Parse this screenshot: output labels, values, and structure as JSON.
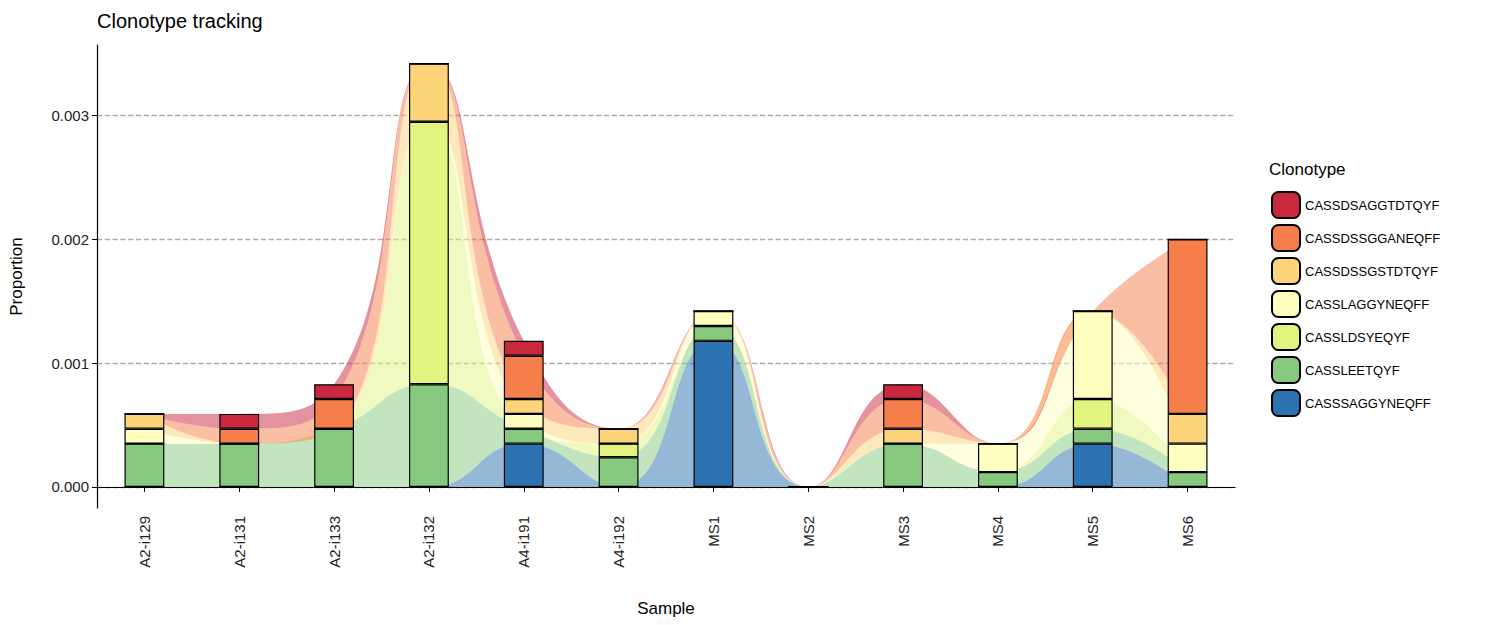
{
  "chart_data": {
    "type": "bar",
    "title": "Clonotype tracking",
    "x_label": "Sample",
    "y_label": "Proportion",
    "legend_title": "Clonotype",
    "legend": "right",
    "stacked": true,
    "grid": true,
    "categories": [
      "A2-i129",
      "A2-i131",
      "A2-i133",
      "A2-i132",
      "A4-i191",
      "A4-i192",
      "MS1",
      "MS2",
      "MS3",
      "MS4",
      "MS5",
      "MS6"
    ],
    "ylim": [
      -0.00017,
      0.00357
    ],
    "yticks": [
      {
        "value": 0,
        "label": "0.000"
      },
      {
        "value": 0.001,
        "label": "0.001"
      },
      {
        "value": 0.002,
        "label": "0.002"
      },
      {
        "value": 0.003,
        "label": "0.003"
      }
    ],
    "series": [
      {
        "name": "CASSSAGGYNEQFF",
        "color": "#2c72b0",
        "values": [
          0,
          0,
          0,
          0,
          0.00035,
          0,
          0.00118,
          0,
          0,
          0,
          0.00035,
          0
        ]
      },
      {
        "name": "CASSLEETQYF",
        "color": "#86c97e",
        "values": [
          0.00035,
          0.00035,
          0.00047,
          0.00083,
          0.00012,
          0.00024,
          0.00012,
          0,
          0.00035,
          0.00012,
          0.00012,
          0.00012
        ]
      },
      {
        "name": "CASSLDSYEQYF",
        "color": "#e2f37f",
        "values": [
          0,
          0,
          0,
          0.00212,
          0,
          0.00011,
          0,
          0,
          0,
          0,
          0.00024,
          0
        ]
      },
      {
        "name": "CASSLAGGYNEQFF",
        "color": "#ffffbf",
        "values": [
          0.00012,
          0,
          0,
          0,
          0.00012,
          0,
          0.00012,
          0,
          0,
          0.00023,
          0.00071,
          0.00023
        ]
      },
      {
        "name": "CASSDSSGSTDTQYF",
        "color": "#fdd47a",
        "values": [
          0.00012,
          0,
          0,
          0.00047,
          0.00012,
          0.00012,
          0,
          0,
          0.00012,
          0,
          0,
          0.00024
        ]
      },
      {
        "name": "CASSDSSGGANEQFF",
        "color": "#f67e4b",
        "values": [
          0,
          0.00012,
          0.00024,
          0,
          0.00035,
          0,
          0,
          0,
          0.00024,
          0,
          0,
          0.00141
        ]
      },
      {
        "name": "CASSDSAGGTDTQYF",
        "color": "#c9283e",
        "values": [
          0,
          0.00012,
          0.00012,
          0,
          0.00012,
          0,
          0,
          0,
          0.00012,
          0,
          0,
          0
        ]
      }
    ]
  }
}
